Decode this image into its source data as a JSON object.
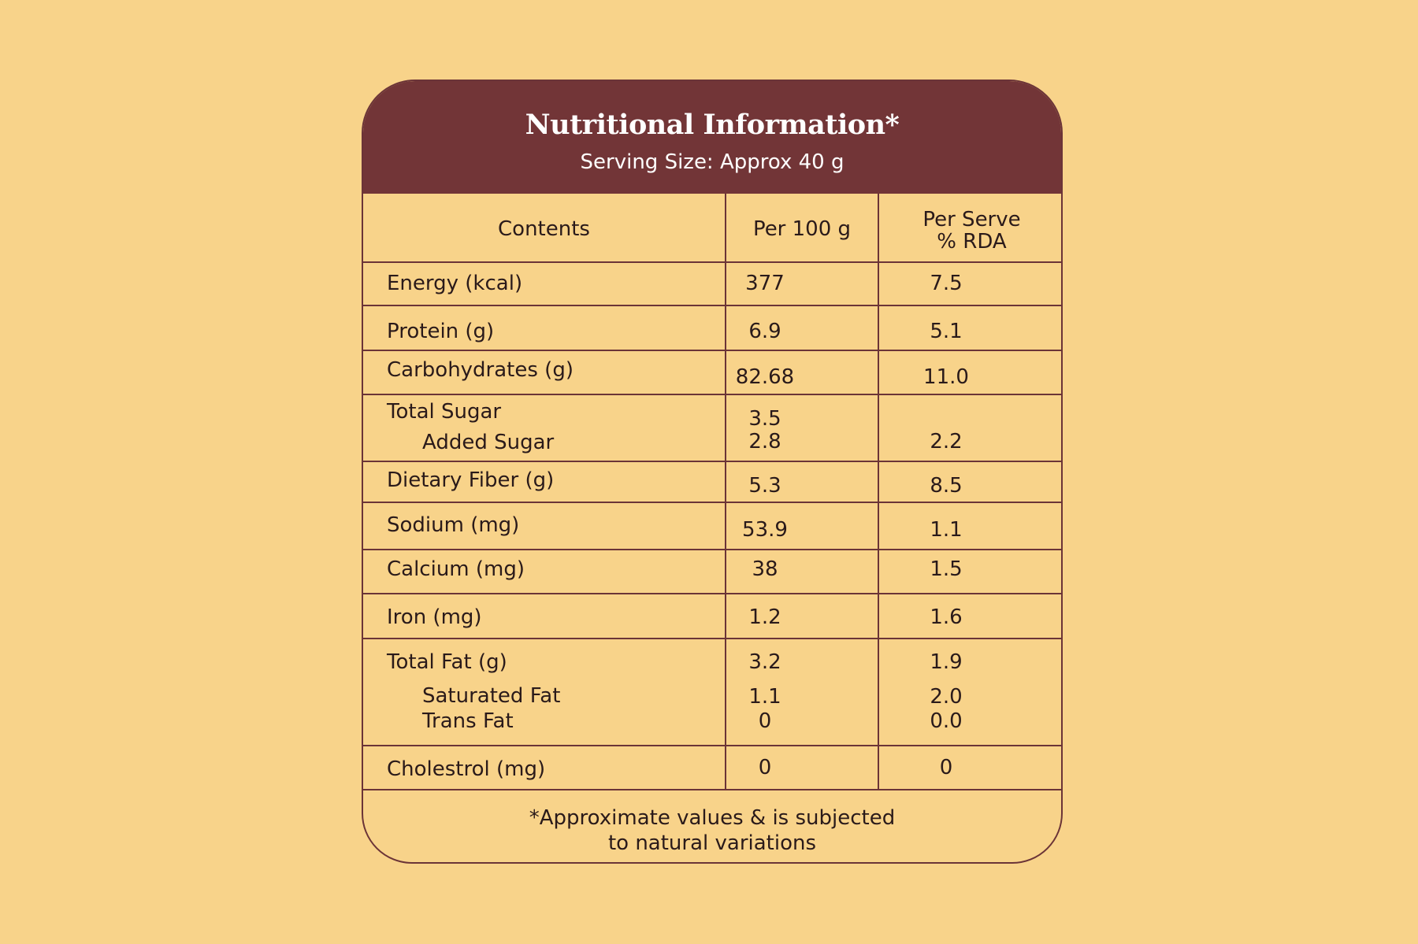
{
  "header": {
    "title": "Nutritional Information*",
    "subtitle": "Serving Size: Approx 40 g"
  },
  "columns": {
    "contents": "Contents",
    "per100": "Per 100 g",
    "perserve_line1": "Per Serve",
    "perserve_line2": "% RDA"
  },
  "rows": {
    "energy": {
      "label": "Energy (kcal)",
      "per100": "377",
      "rda": "7.5"
    },
    "protein": {
      "label": "Protein (g)",
      "per100": "6.9",
      "rda": "5.1"
    },
    "carbs": {
      "label": "Carbohydrates (g)",
      "per100": "82.68",
      "rda": "11.0"
    },
    "total_sugar": {
      "label": "Total Sugar",
      "per100": "3.5"
    },
    "added_sugar": {
      "label": "Added Sugar",
      "per100": "2.8",
      "rda": "2.2"
    },
    "fiber": {
      "label": "Dietary Fiber (g)",
      "per100": "5.3",
      "rda": "8.5"
    },
    "sodium": {
      "label": "Sodium (mg)",
      "per100": "53.9",
      "rda": "1.1"
    },
    "calcium": {
      "label": "Calcium (mg)",
      "per100": "38",
      "rda": "1.5"
    },
    "iron": {
      "label": "Iron (mg)",
      "per100": "1.2",
      "rda": "1.6"
    },
    "total_fat": {
      "label": "Total Fat (g)",
      "per100": "3.2",
      "rda": "1.9"
    },
    "sat_fat": {
      "label": "Saturated Fat",
      "per100": "1.1",
      "rda": "2.0"
    },
    "trans_fat": {
      "label": "Trans Fat",
      "per100": "0",
      "rda": "0.0"
    },
    "cholestrol": {
      "label": "Cholestrol (mg)",
      "per100": "0",
      "rda": "0"
    }
  },
  "footer": {
    "line1": "*Approximate values & is subjected",
    "line2": "to natural variations"
  },
  "colors": {
    "background": "#f8d38a",
    "header": "#723537",
    "border": "#6b3437",
    "text": "#2a1a1a"
  }
}
